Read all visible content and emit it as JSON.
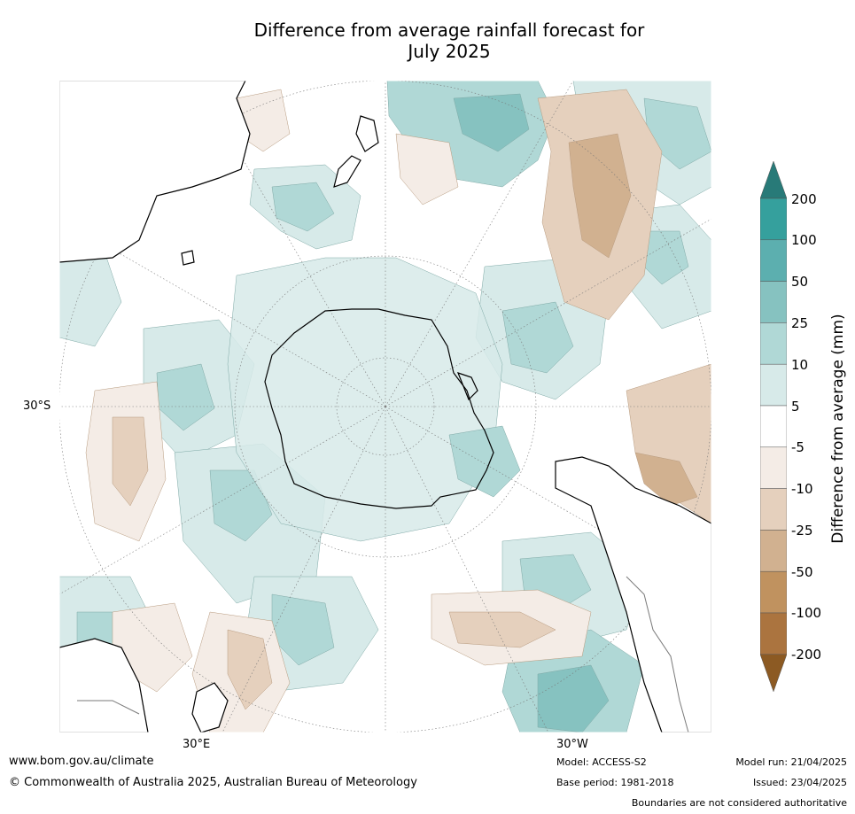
{
  "title_line1": "Difference from average rainfall forecast for",
  "title_line2": "July 2025",
  "map": {
    "latitude_label": "30°S",
    "longitude_labels": [
      "30°E",
      "30°W"
    ],
    "colors": {
      "land_outline": "#000000",
      "graticule": "#777777",
      "border": "#7a7a7a"
    }
  },
  "colorbar": {
    "title": "Difference from average (mm)",
    "tick_labels": [
      "200",
      "100",
      "50",
      "25",
      "10",
      "5",
      "-5",
      "-10",
      "-25",
      "-50",
      "-100",
      "-200"
    ],
    "colors_top_to_bottom": [
      "#287a78",
      "#35a09d",
      "#5cafaf",
      "#86c2c0",
      "#b0d8d6",
      "#d7eae9",
      "#ffffff",
      "#f4ece6",
      "#e5d0bd",
      "#d1b190",
      "#c0925f",
      "#ab743f",
      "#8c5a23"
    ]
  },
  "footer": {
    "website": "www.bom.gov.au/climate",
    "copyright": "© Commonwealth of Australia 2025, Australian Bureau of Meteorology",
    "model": "Model: ACCESS-S2",
    "base_period": "Base period: 1981-2018",
    "model_run": "Model run: 21/04/2025",
    "issued": "Issued: 23/04/2025",
    "disclaimer": "Boundaries are not considered authoritative"
  }
}
